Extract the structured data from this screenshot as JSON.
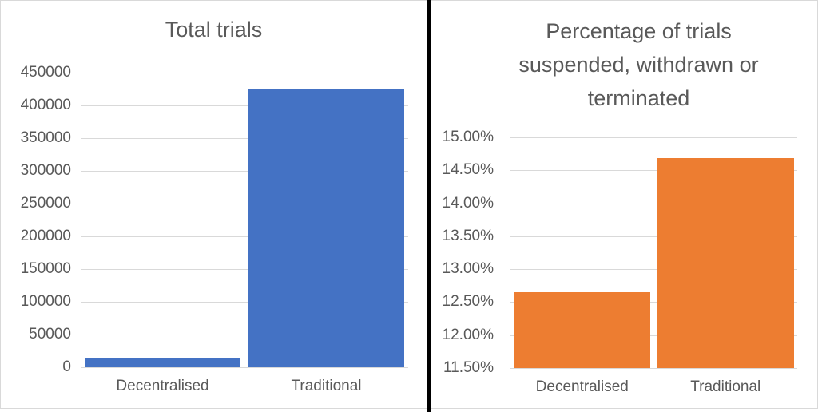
{
  "colors": {
    "background": "#FFFFFF",
    "panel_border": "#D9D9D9",
    "divider": "#000000",
    "gridline": "#D9D9D9",
    "title_text": "#595959",
    "axis_text": "#595959",
    "blue_bar": "#4472C4",
    "orange_bar": "#ED7D31"
  },
  "chart_data": [
    {
      "type": "bar",
      "title": "Total trials",
      "categories": [
        "Decentralised",
        "Traditional"
      ],
      "values": [
        15000,
        424000
      ],
      "ylim": [
        0,
        450000
      ],
      "grid": true,
      "legend_position": "none",
      "bar_color": "#4472C4",
      "yticks": [
        {
          "value": 450000,
          "label": "450000"
        },
        {
          "value": 400000,
          "label": "400000"
        },
        {
          "value": 350000,
          "label": "350000"
        },
        {
          "value": 300000,
          "label": "300000"
        },
        {
          "value": 250000,
          "label": "250000"
        },
        {
          "value": 200000,
          "label": "200000"
        },
        {
          "value": 150000,
          "label": "150000"
        },
        {
          "value": 100000,
          "label": "100000"
        },
        {
          "value": 50000,
          "label": "50000"
        },
        {
          "value": 0,
          "label": "0"
        }
      ]
    },
    {
      "type": "bar",
      "title": "Percentage of trials suspended, withdrawn or terminated",
      "categories": [
        "Decentralised",
        "Traditional"
      ],
      "values": [
        12.65,
        14.68
      ],
      "unit": "%",
      "ylim": [
        11.5,
        15.0
      ],
      "grid": true,
      "legend_position": "none",
      "bar_color": "#ED7D31",
      "yticks": [
        {
          "value": 15.0,
          "label": "15.00%"
        },
        {
          "value": 14.5,
          "label": "14.50%"
        },
        {
          "value": 14.0,
          "label": "14.00%"
        },
        {
          "value": 13.5,
          "label": "13.50%"
        },
        {
          "value": 13.0,
          "label": "13.00%"
        },
        {
          "value": 12.5,
          "label": "12.50%"
        },
        {
          "value": 12.0,
          "label": "12.00%"
        },
        {
          "value": 11.5,
          "label": "11.50%"
        }
      ]
    }
  ]
}
